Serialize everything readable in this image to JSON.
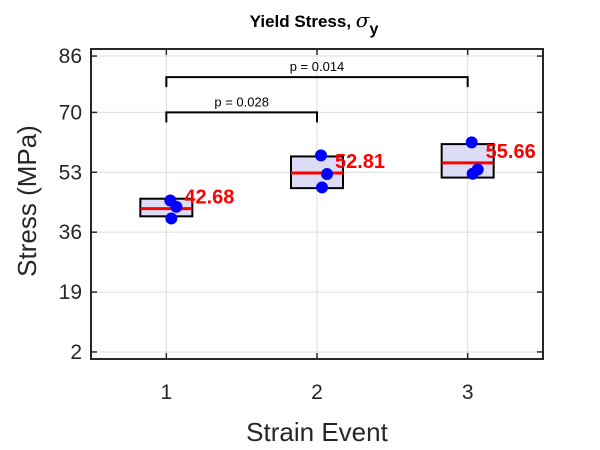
{
  "chart_data": {
    "type": "box",
    "title": "Yield Stress, ",
    "title_symbol": "σ",
    "title_subscript": "y",
    "xlabel": "Strain Event",
    "ylabel": "Stress (MPa)",
    "categories": [
      "1",
      "2",
      "3"
    ],
    "xlim": [
      0.5,
      3.5
    ],
    "ylim": [
      0,
      88
    ],
    "yticks": [
      2,
      19,
      36,
      53,
      70,
      86
    ],
    "grid": true,
    "groups": [
      {
        "x": 1,
        "box_low": 40.5,
        "box_high": 45.5,
        "mean": 42.68,
        "mean_label": "42.68",
        "points": [
          45.0,
          43.2,
          39.9
        ]
      },
      {
        "x": 2,
        "box_low": 48.5,
        "box_high": 57.5,
        "mean": 52.81,
        "mean_label": "52.81",
        "points": [
          57.8,
          52.5,
          48.7
        ]
      },
      {
        "x": 3,
        "box_low": 51.5,
        "box_high": 61.0,
        "mean": 55.66,
        "mean_label": "55.66",
        "points": [
          61.5,
          53.8,
          52.6
        ]
      }
    ],
    "significance": [
      {
        "from": 1,
        "to": 2,
        "y": 70,
        "label": "p = 0.028"
      },
      {
        "from": 1,
        "to": 3,
        "y": 80,
        "label": "p = 0.014"
      }
    ],
    "colors": {
      "box_fill": "#dcdcf5",
      "box_edge": "#000000",
      "mean_line": "#ff0000",
      "points": "#0000ff",
      "mean_label": "#ff0000",
      "grid": "#dcdcdc"
    }
  }
}
